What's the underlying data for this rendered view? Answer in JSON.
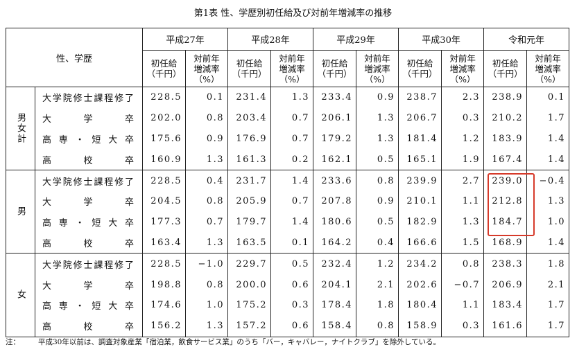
{
  "title": "第1表 性、学歴別初任給及び対前年増減率の推移",
  "header": {
    "corner": "性、学歴",
    "years": [
      "平成27年",
      "平成28年",
      "平成29年",
      "平成30年",
      "令和元年"
    ],
    "sub": [
      "初任給\n（千円）",
      "対前年\n増減率\n（%）"
    ]
  },
  "groups": [
    {
      "name": "男女計",
      "rows": [
        {
          "label": "大学院修士課程修了",
          "cells": [
            "228.5",
            "0.1",
            "231.4",
            "1.3",
            "233.4",
            "0.9",
            "238.7",
            "2.3",
            "238.9",
            "0.1"
          ]
        },
        {
          "label": "大学卒",
          "cells": [
            "202.0",
            "0.8",
            "203.4",
            "0.7",
            "206.1",
            "1.3",
            "206.7",
            "0.3",
            "210.2",
            "1.7"
          ]
        },
        {
          "label": "高専・短大卒",
          "cells": [
            "175.6",
            "0.9",
            "176.9",
            "0.7",
            "179.2",
            "1.3",
            "181.4",
            "1.2",
            "183.9",
            "1.4"
          ]
        },
        {
          "label": "高校卒",
          "cells": [
            "160.9",
            "1.3",
            "161.3",
            "0.2",
            "162.1",
            "0.5",
            "165.1",
            "1.9",
            "167.4",
            "1.4"
          ]
        }
      ]
    },
    {
      "name": "男",
      "rows": [
        {
          "label": "大学院修士課程修了",
          "cells": [
            "228.5",
            "0.4",
            "231.7",
            "1.4",
            "233.6",
            "0.8",
            "239.9",
            "2.7",
            "239.0",
            "−0.4"
          ]
        },
        {
          "label": "大学卒",
          "cells": [
            "204.5",
            "0.8",
            "205.9",
            "0.7",
            "207.8",
            "0.9",
            "210.1",
            "1.1",
            "212.8",
            "1.3"
          ]
        },
        {
          "label": "高専・短大卒",
          "cells": [
            "177.3",
            "0.7",
            "179.7",
            "1.4",
            "180.6",
            "0.5",
            "182.9",
            "1.3",
            "184.7",
            "1.0"
          ]
        },
        {
          "label": "高校卒",
          "cells": [
            "163.4",
            "1.3",
            "163.5",
            "0.1",
            "164.2",
            "0.4",
            "166.6",
            "1.5",
            "168.9",
            "1.4"
          ]
        }
      ]
    },
    {
      "name": "女",
      "rows": [
        {
          "label": "大学院修士課程修了",
          "cells": [
            "228.5",
            "−1.0",
            "229.7",
            "0.5",
            "232.4",
            "1.2",
            "234.2",
            "0.8",
            "238.3",
            "1.8"
          ]
        },
        {
          "label": "大学卒",
          "cells": [
            "198.8",
            "0.8",
            "200.0",
            "0.6",
            "204.1",
            "2.1",
            "202.6",
            "−0.7",
            "206.9",
            "2.1"
          ]
        },
        {
          "label": "高専・短大卒",
          "cells": [
            "174.6",
            "1.0",
            "175.2",
            "0.3",
            "178.4",
            "1.8",
            "180.4",
            "1.1",
            "183.4",
            "1.7"
          ]
        },
        {
          "label": "高校卒",
          "cells": [
            "156.2",
            "1.3",
            "157.2",
            "0.6",
            "158.4",
            "0.8",
            "158.9",
            "0.3",
            "161.6",
            "1.7"
          ]
        }
      ]
    }
  ],
  "note": {
    "label": "注：",
    "text": "平成30年以前は、調査対象産業「宿泊業，飲食サービス業」のうち「バー，キャバレー，ナイトクラブ」を除外している。"
  }
}
